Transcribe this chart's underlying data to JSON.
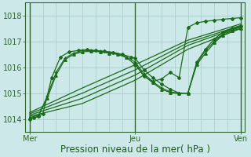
{
  "xlabel": "Pression niveau de la mer( hPa )",
  "bg_color": "#cde8e8",
  "grid_color": "#aacccc",
  "line_color": "#1a6b1a",
  "ylim": [
    1013.5,
    1018.5
  ],
  "xlim": [
    -2,
    98
  ],
  "xtick_positions": [
    0,
    48,
    96
  ],
  "xtick_labels": [
    "Mer",
    "Jeu",
    "Ven"
  ],
  "ytick_positions": [
    1014,
    1015,
    1016,
    1017,
    1018
  ],
  "ytick_labels": [
    "1014",
    "1015",
    "1016",
    "1017",
    "1018"
  ],
  "lines": [
    {
      "x": [
        0,
        2,
        4,
        6,
        10,
        14,
        18,
        22,
        26,
        30,
        34,
        38,
        42,
        46,
        48,
        52,
        56,
        60,
        64,
        68,
        72,
        76,
        80,
        84,
        88,
        92,
        96
      ],
      "y": [
        1014.0,
        1014.05,
        1014.1,
        1014.2,
        1015.6,
        1016.4,
        1016.6,
        1016.65,
        1016.68,
        1016.65,
        1016.62,
        1016.58,
        1016.5,
        1016.4,
        1016.35,
        1015.9,
        1015.6,
        1015.35,
        1015.15,
        1015.0,
        1015.0,
        1016.2,
        1016.7,
        1017.1,
        1017.35,
        1017.5,
        1017.6
      ],
      "marker": "D",
      "ms": 2.0,
      "lw": 0.9
    },
    {
      "x": [
        0,
        4,
        8,
        12,
        16,
        20,
        24,
        28,
        32,
        36,
        40,
        44,
        48,
        52,
        56,
        60,
        64,
        68,
        72,
        76,
        80,
        84,
        88,
        92,
        96
      ],
      "y": [
        1014.0,
        1014.1,
        1014.9,
        1015.8,
        1016.35,
        1016.55,
        1016.65,
        1016.65,
        1016.62,
        1016.58,
        1016.52,
        1016.4,
        1016.2,
        1015.75,
        1015.45,
        1015.2,
        1015.05,
        1015.0,
        1015.0,
        1016.15,
        1016.65,
        1017.0,
        1017.3,
        1017.45,
        1017.55
      ],
      "marker": "+",
      "ms": 3.5,
      "lw": 0.8
    },
    {
      "x": [
        0,
        4,
        8,
        12,
        16,
        20,
        24,
        28,
        32,
        36,
        40,
        44,
        48,
        52,
        56,
        60,
        64,
        68,
        72,
        76,
        80,
        84,
        88,
        92,
        96
      ],
      "y": [
        1014.05,
        1014.15,
        1014.8,
        1015.7,
        1016.3,
        1016.5,
        1016.6,
        1016.62,
        1016.6,
        1016.55,
        1016.5,
        1016.38,
        1016.1,
        1015.68,
        1015.4,
        1015.15,
        1015.02,
        1014.98,
        1015.0,
        1016.1,
        1016.55,
        1016.95,
        1017.25,
        1017.42,
        1017.5
      ],
      "marker": "^",
      "ms": 2.5,
      "lw": 0.9
    },
    {
      "x": [
        0,
        24,
        48,
        72,
        96
      ],
      "y": [
        1014.1,
        1014.6,
        1015.5,
        1016.7,
        1017.5
      ],
      "marker": null,
      "ms": 0,
      "lw": 0.9
    },
    {
      "x": [
        0,
        24,
        48,
        72,
        96
      ],
      "y": [
        1014.15,
        1014.8,
        1015.7,
        1016.85,
        1017.58
      ],
      "marker": null,
      "ms": 0,
      "lw": 0.9
    },
    {
      "x": [
        0,
        24,
        48,
        72,
        96
      ],
      "y": [
        1014.2,
        1015.0,
        1015.9,
        1016.95,
        1017.62
      ],
      "marker": null,
      "ms": 0,
      "lw": 0.9
    },
    {
      "x": [
        0,
        24,
        48,
        72,
        96
      ],
      "y": [
        1014.25,
        1015.2,
        1016.1,
        1017.05,
        1017.68
      ],
      "marker": null,
      "ms": 0,
      "lw": 0.9
    },
    {
      "x": [
        48,
        52,
        56,
        60,
        64,
        68,
        72,
        76,
        80,
        84,
        88,
        92,
        96
      ],
      "y": [
        1016.15,
        1015.65,
        1015.45,
        1015.55,
        1015.8,
        1015.6,
        1017.55,
        1017.72,
        1017.78,
        1017.82,
        1017.86,
        1017.89,
        1017.92
      ],
      "marker": "D",
      "ms": 2.0,
      "lw": 0.9
    }
  ],
  "vline_positions": [
    0,
    48,
    96
  ],
  "vline_color": "#336633",
  "axis_color": "#336633",
  "tick_color": "#336633",
  "label_color": "#1a5c1a",
  "xlabel_fontsize": 8.5,
  "tick_fontsize": 7.0
}
